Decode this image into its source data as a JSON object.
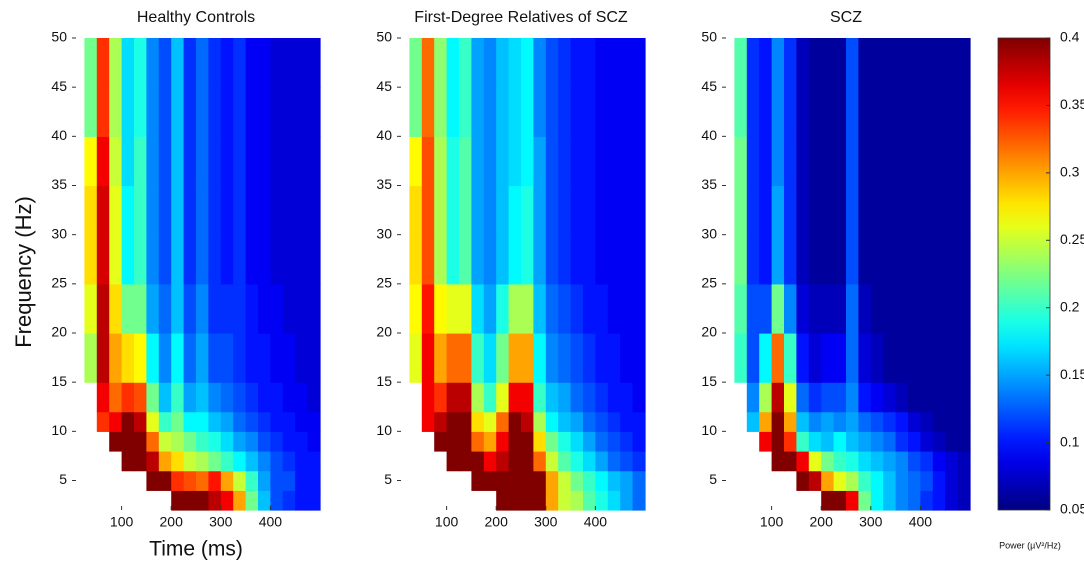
{
  "chart_data": {
    "type": "heatmap",
    "colormap": "jet",
    "ylabel": "Frequency (Hz)",
    "xlabel": "Time (ms)",
    "xlim": [
      0,
      500
    ],
    "xticks": [
      100,
      200,
      300,
      400
    ],
    "ylim": [
      2,
      50
    ],
    "yticks": [
      5,
      10,
      15,
      20,
      25,
      30,
      35,
      40,
      45,
      50
    ],
    "x_bins": [
      0,
      25,
      50,
      75,
      100,
      125,
      150,
      175,
      200,
      225,
      250,
      275,
      300,
      325,
      350,
      375,
      400,
      425,
      450,
      475,
      500
    ],
    "y_bins": [
      2,
      4,
      6,
      8,
      10,
      12,
      15,
      20,
      25,
      30,
      35,
      40,
      45,
      50
    ],
    "clim": [
      0.05,
      0.4
    ],
    "cticks": [
      0.05,
      0.1,
      0.15,
      0.2,
      0.25,
      0.3,
      0.35,
      0.4
    ],
    "colorbar_label": "Power (µV²/Hz)",
    "panels": [
      {
        "title": "Healthy Controls",
        "values": [
          [
            null,
            null,
            null,
            null,
            null,
            null,
            null,
            null,
            0.4,
            0.4,
            0.4,
            0.38,
            0.36,
            0.3,
            0.22,
            0.16,
            0.12,
            0.11,
            0.1,
            0.1
          ],
          [
            null,
            null,
            null,
            null,
            null,
            null,
            0.4,
            0.4,
            0.34,
            0.33,
            0.32,
            0.35,
            0.3,
            0.25,
            0.2,
            0.15,
            0.12,
            0.12,
            0.1,
            0.1
          ],
          [
            null,
            null,
            null,
            null,
            0.4,
            0.4,
            0.38,
            0.3,
            0.28,
            0.25,
            0.24,
            0.22,
            0.2,
            0.18,
            0.16,
            0.14,
            0.12,
            0.11,
            0.1,
            0.1
          ],
          [
            null,
            null,
            null,
            0.4,
            0.4,
            0.4,
            0.32,
            0.25,
            0.24,
            0.22,
            0.2,
            0.19,
            0.17,
            0.15,
            0.14,
            0.12,
            0.11,
            0.1,
            0.1,
            0.09
          ],
          [
            null,
            null,
            0.34,
            0.36,
            0.4,
            0.38,
            0.26,
            0.2,
            0.22,
            0.18,
            0.18,
            0.16,
            0.15,
            0.13,
            0.12,
            0.11,
            0.1,
            0.1,
            0.09,
            0.09
          ],
          [
            null,
            null,
            0.36,
            0.32,
            0.34,
            0.33,
            0.22,
            0.16,
            0.2,
            0.15,
            0.16,
            0.14,
            0.13,
            0.12,
            0.11,
            0.1,
            0.1,
            0.09,
            0.09,
            0.08
          ],
          [
            null,
            0.24,
            0.38,
            0.3,
            0.28,
            0.27,
            0.18,
            0.14,
            0.18,
            0.13,
            0.15,
            0.12,
            0.12,
            0.11,
            0.1,
            0.1,
            0.09,
            0.09,
            0.08,
            0.08
          ],
          [
            null,
            0.26,
            0.38,
            0.28,
            0.22,
            0.22,
            0.15,
            0.13,
            0.16,
            0.12,
            0.14,
            0.11,
            0.11,
            0.11,
            0.1,
            0.09,
            0.09,
            0.08,
            0.08,
            0.08
          ],
          [
            null,
            0.28,
            0.37,
            0.26,
            0.18,
            0.2,
            0.14,
            0.12,
            0.16,
            0.11,
            0.13,
            0.11,
            0.1,
            0.11,
            0.09,
            0.09,
            0.08,
            0.08,
            0.08,
            0.08
          ],
          [
            null,
            0.28,
            0.37,
            0.26,
            0.18,
            0.2,
            0.14,
            0.12,
            0.16,
            0.11,
            0.13,
            0.11,
            0.1,
            0.11,
            0.09,
            0.09,
            0.08,
            0.08,
            0.08,
            0.08
          ],
          [
            null,
            0.27,
            0.36,
            0.25,
            0.17,
            0.2,
            0.14,
            0.12,
            0.16,
            0.11,
            0.13,
            0.11,
            0.1,
            0.11,
            0.09,
            0.09,
            0.08,
            0.08,
            0.08,
            0.08
          ],
          [
            null,
            0.22,
            0.34,
            0.24,
            0.17,
            0.19,
            0.14,
            0.12,
            0.16,
            0.11,
            0.13,
            0.11,
            0.1,
            0.11,
            0.09,
            0.09,
            0.08,
            0.08,
            0.08,
            0.08
          ],
          [
            null,
            0.22,
            0.34,
            0.24,
            0.17,
            0.19,
            0.14,
            0.12,
            0.16,
            0.11,
            0.13,
            0.11,
            0.1,
            0.11,
            0.09,
            0.09,
            0.08,
            0.08,
            0.08,
            0.08
          ]
        ]
      },
      {
        "title": "First-Degree Relatives of SCZ",
        "values": [
          [
            null,
            null,
            null,
            null,
            null,
            null,
            null,
            null,
            0.4,
            0.4,
            0.4,
            0.4,
            0.3,
            0.25,
            0.24,
            0.21,
            0.19,
            0.17,
            0.15,
            0.13
          ],
          [
            null,
            null,
            null,
            null,
            null,
            null,
            0.4,
            0.4,
            0.4,
            0.4,
            0.4,
            0.4,
            0.3,
            0.25,
            0.22,
            0.2,
            0.18,
            0.16,
            0.15,
            0.13
          ],
          [
            null,
            null,
            null,
            null,
            0.4,
            0.4,
            0.4,
            0.36,
            0.38,
            0.4,
            0.4,
            0.32,
            0.25,
            0.21,
            0.19,
            0.17,
            0.15,
            0.13,
            0.12,
            0.11
          ],
          [
            null,
            null,
            null,
            0.4,
            0.4,
            0.4,
            0.32,
            0.3,
            0.36,
            0.4,
            0.4,
            0.28,
            0.22,
            0.19,
            0.17,
            0.15,
            0.13,
            0.12,
            0.11,
            0.1
          ],
          [
            null,
            null,
            0.36,
            0.38,
            0.4,
            0.4,
            0.28,
            0.26,
            0.32,
            0.4,
            0.38,
            0.24,
            0.18,
            0.16,
            0.15,
            0.13,
            0.12,
            0.11,
            0.1,
            0.1
          ],
          [
            null,
            null,
            0.36,
            0.34,
            0.38,
            0.38,
            0.24,
            0.2,
            0.26,
            0.36,
            0.36,
            0.2,
            0.16,
            0.15,
            0.13,
            0.12,
            0.11,
            0.1,
            0.1,
            0.09
          ],
          [
            null,
            0.26,
            0.36,
            0.3,
            0.32,
            0.32,
            0.2,
            0.17,
            0.22,
            0.3,
            0.3,
            0.18,
            0.14,
            0.13,
            0.12,
            0.11,
            0.1,
            0.1,
            0.09,
            0.09
          ],
          [
            null,
            0.27,
            0.35,
            0.27,
            0.26,
            0.26,
            0.17,
            0.15,
            0.19,
            0.24,
            0.24,
            0.16,
            0.13,
            0.12,
            0.11,
            0.1,
            0.1,
            0.09,
            0.09,
            0.09
          ],
          [
            null,
            0.28,
            0.33,
            0.24,
            0.19,
            0.21,
            0.15,
            0.14,
            0.16,
            0.18,
            0.19,
            0.15,
            0.12,
            0.11,
            0.1,
            0.1,
            0.09,
            0.09,
            0.09,
            0.09
          ],
          [
            null,
            0.28,
            0.33,
            0.24,
            0.19,
            0.21,
            0.15,
            0.14,
            0.16,
            0.18,
            0.19,
            0.15,
            0.12,
            0.11,
            0.1,
            0.1,
            0.09,
            0.09,
            0.09,
            0.09
          ],
          [
            null,
            0.27,
            0.33,
            0.24,
            0.19,
            0.21,
            0.15,
            0.14,
            0.16,
            0.17,
            0.18,
            0.15,
            0.12,
            0.11,
            0.1,
            0.1,
            0.09,
            0.09,
            0.09,
            0.09
          ],
          [
            null,
            0.22,
            0.32,
            0.23,
            0.18,
            0.2,
            0.15,
            0.14,
            0.16,
            0.17,
            0.18,
            0.14,
            0.12,
            0.11,
            0.1,
            0.1,
            0.09,
            0.09,
            0.09,
            0.09
          ],
          [
            null,
            0.22,
            0.32,
            0.23,
            0.18,
            0.2,
            0.15,
            0.14,
            0.16,
            0.17,
            0.18,
            0.14,
            0.12,
            0.11,
            0.1,
            0.1,
            0.09,
            0.09,
            0.09,
            0.09
          ]
        ]
      },
      {
        "title": "SCZ",
        "values": [
          [
            null,
            null,
            null,
            null,
            null,
            null,
            null,
            null,
            0.4,
            0.4,
            0.36,
            0.22,
            0.18,
            0.16,
            0.14,
            0.13,
            0.11,
            0.1,
            0.08,
            0.07
          ],
          [
            null,
            null,
            null,
            null,
            null,
            null,
            0.4,
            0.38,
            0.3,
            0.26,
            0.24,
            0.2,
            0.18,
            0.16,
            0.14,
            0.13,
            0.12,
            0.1,
            0.08,
            0.07
          ],
          [
            null,
            null,
            null,
            null,
            0.4,
            0.4,
            0.36,
            0.26,
            0.22,
            0.2,
            0.19,
            0.17,
            0.16,
            0.15,
            0.14,
            0.12,
            0.11,
            0.09,
            0.08,
            0.07
          ],
          [
            null,
            null,
            null,
            0.36,
            0.4,
            0.34,
            0.2,
            0.17,
            0.16,
            0.18,
            0.16,
            0.15,
            0.14,
            0.13,
            0.11,
            0.1,
            0.08,
            0.07,
            0.06,
            0.06
          ],
          [
            null,
            null,
            0.16,
            0.3,
            0.4,
            0.3,
            0.16,
            0.14,
            0.15,
            0.14,
            0.15,
            0.13,
            0.12,
            0.11,
            0.1,
            0.08,
            0.07,
            0.06,
            0.06,
            0.06
          ],
          [
            null,
            null,
            0.14,
            0.24,
            0.38,
            0.26,
            0.13,
            0.11,
            0.12,
            0.12,
            0.14,
            0.1,
            0.09,
            0.08,
            0.07,
            0.06,
            0.06,
            0.06,
            0.06,
            0.06
          ],
          [
            null,
            0.2,
            0.12,
            0.18,
            0.32,
            0.2,
            0.1,
            0.08,
            0.09,
            0.09,
            0.13,
            0.08,
            0.07,
            0.06,
            0.06,
            0.06,
            0.06,
            0.06,
            0.06,
            0.06
          ],
          [
            null,
            0.21,
            0.12,
            0.12,
            0.22,
            0.14,
            0.08,
            0.07,
            0.07,
            0.07,
            0.13,
            0.07,
            0.06,
            0.06,
            0.06,
            0.06,
            0.06,
            0.06,
            0.06,
            0.06
          ],
          [
            null,
            0.22,
            0.11,
            0.1,
            0.15,
            0.11,
            0.07,
            0.06,
            0.06,
            0.06,
            0.12,
            0.06,
            0.06,
            0.06,
            0.06,
            0.06,
            0.06,
            0.06,
            0.06,
            0.06
          ],
          [
            null,
            0.22,
            0.11,
            0.1,
            0.15,
            0.11,
            0.07,
            0.06,
            0.06,
            0.06,
            0.12,
            0.06,
            0.06,
            0.06,
            0.06,
            0.06,
            0.06,
            0.06,
            0.06,
            0.06
          ],
          [
            null,
            0.22,
            0.11,
            0.1,
            0.14,
            0.11,
            0.07,
            0.06,
            0.06,
            0.06,
            0.12,
            0.06,
            0.06,
            0.06,
            0.06,
            0.06,
            0.06,
            0.06,
            0.06,
            0.06
          ],
          [
            null,
            0.21,
            0.11,
            0.1,
            0.14,
            0.11,
            0.07,
            0.06,
            0.06,
            0.06,
            0.12,
            0.06,
            0.06,
            0.06,
            0.06,
            0.06,
            0.06,
            0.06,
            0.06,
            0.06
          ],
          [
            null,
            0.21,
            0.11,
            0.1,
            0.14,
            0.11,
            0.07,
            0.06,
            0.06,
            0.06,
            0.12,
            0.06,
            0.06,
            0.06,
            0.06,
            0.06,
            0.06,
            0.06,
            0.06,
            0.06
          ]
        ]
      }
    ]
  }
}
